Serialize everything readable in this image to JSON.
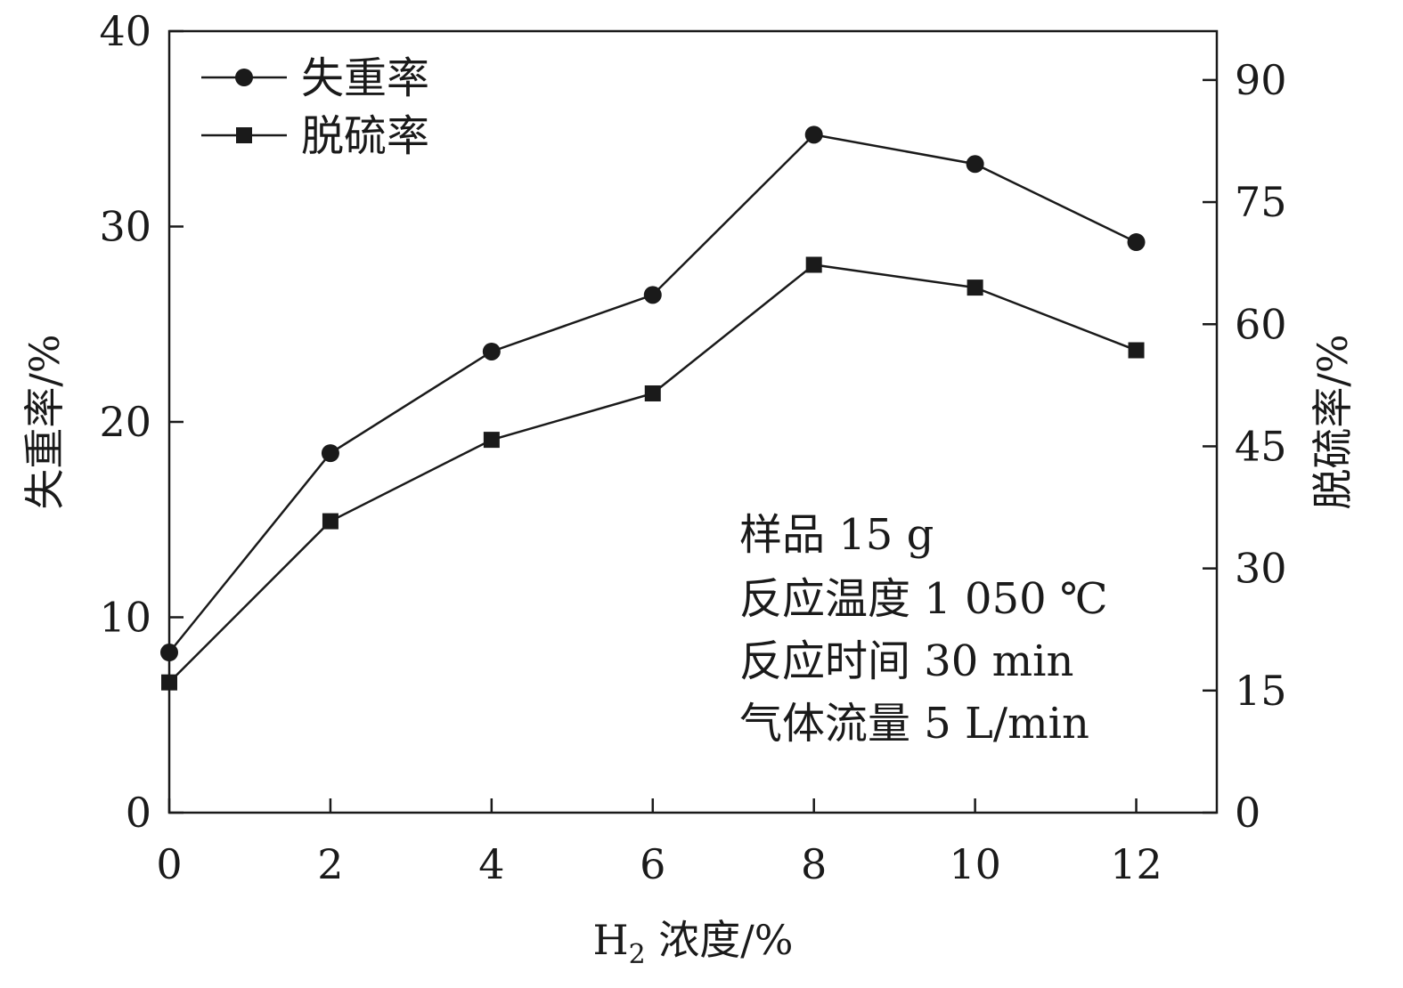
{
  "chart_data": {
    "type": "line",
    "x": [
      0,
      2,
      4,
      6,
      8,
      10,
      12
    ],
    "xlabel_main": "H",
    "xlabel_sub": "2",
    "xlabel_rest": " 浓度/%",
    "ylabel_left": "失重率/%",
    "ylabel_right": "脱硫率/%",
    "xlim": [
      0,
      13
    ],
    "ylim_left": [
      0,
      40
    ],
    "ylim_right": [
      0,
      96
    ],
    "xticks": [
      "0",
      "2",
      "4",
      "6",
      "8",
      "10",
      "12"
    ],
    "yticks_left": [
      "0",
      "10",
      "20",
      "30",
      "40"
    ],
    "yticks_right": [
      "0",
      "15",
      "30",
      "45",
      "60",
      "75",
      "90"
    ],
    "series": [
      {
        "name": "失重率",
        "axis": "left",
        "marker": "circle",
        "values": [
          8.2,
          18.4,
          23.6,
          26.5,
          34.7,
          33.2,
          29.2
        ]
      },
      {
        "name": "脱硫率",
        "axis": "right",
        "marker": "square",
        "values": [
          16.0,
          35.8,
          45.8,
          51.5,
          67.3,
          64.5,
          56.8
        ]
      }
    ],
    "annotations": [
      "样品 15 g",
      "反应温度 1 050 ℃",
      "反应时间 30 min",
      "气体流量 5 L/min"
    ],
    "legend_position": "top-left",
    "grid": false
  }
}
